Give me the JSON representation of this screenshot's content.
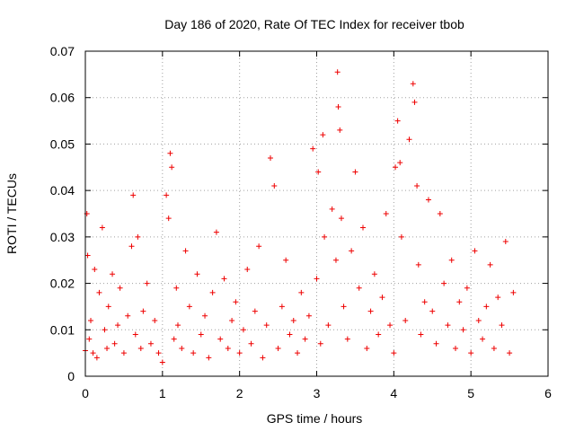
{
  "chart_data": {
    "type": "scatter",
    "title": "Day 186 of 2020, Rate Of TEC Index for receiver tbob",
    "xlabel": "GPS time / hours",
    "ylabel": "ROTI / TECUs",
    "xlim": [
      0,
      6
    ],
    "ylim": [
      0,
      0.07
    ],
    "x_ticks": [
      "0",
      "1",
      "2",
      "3",
      "4",
      "5",
      "6"
    ],
    "y_ticks": [
      "0",
      "0.01",
      "0.02",
      "0.03",
      "0.04",
      "0.05",
      "0.06",
      "0.07"
    ],
    "grid": true,
    "marker": "plus",
    "color": "#ee0000",
    "series": [
      {
        "name": "ROTI",
        "x": [
          0.0,
          0.02,
          0.03,
          0.05,
          0.07,
          0.1,
          0.12,
          0.15,
          0.18,
          0.22,
          0.25,
          0.28,
          0.3,
          0.35,
          0.38,
          0.42,
          0.45,
          0.5,
          0.55,
          0.6,
          0.62,
          0.65,
          0.68,
          0.72,
          0.75,
          0.8,
          0.85,
          0.9,
          0.95,
          1.0,
          1.05,
          1.08,
          1.1,
          1.12,
          1.15,
          1.18,
          1.2,
          1.25,
          1.3,
          1.35,
          1.4,
          1.45,
          1.5,
          1.55,
          1.6,
          1.65,
          1.7,
          1.75,
          1.8,
          1.85,
          1.9,
          1.95,
          2.0,
          2.05,
          2.1,
          2.15,
          2.2,
          2.25,
          2.3,
          2.35,
          2.4,
          2.45,
          2.5,
          2.55,
          2.6,
          2.65,
          2.7,
          2.75,
          2.8,
          2.85,
          2.9,
          2.95,
          3.0,
          3.02,
          3.05,
          3.08,
          3.1,
          3.15,
          3.2,
          3.25,
          3.27,
          3.28,
          3.3,
          3.32,
          3.35,
          3.4,
          3.45,
          3.5,
          3.55,
          3.6,
          3.65,
          3.7,
          3.75,
          3.8,
          3.85,
          3.9,
          3.95,
          4.0,
          4.02,
          4.05,
          4.08,
          4.1,
          4.15,
          4.2,
          4.25,
          4.27,
          4.3,
          4.32,
          4.35,
          4.4,
          4.45,
          4.5,
          4.55,
          4.6,
          4.65,
          4.7,
          4.75,
          4.8,
          4.85,
          4.9,
          4.95,
          5.0,
          5.05,
          5.1,
          5.15,
          5.2,
          5.25,
          5.3,
          5.35,
          5.4,
          5.45,
          5.5,
          5.55
        ],
        "y": [
          0.0055,
          0.035,
          0.026,
          0.008,
          0.012,
          0.005,
          0.023,
          0.004,
          0.018,
          0.032,
          0.01,
          0.006,
          0.015,
          0.022,
          0.007,
          0.011,
          0.019,
          0.005,
          0.013,
          0.028,
          0.039,
          0.009,
          0.03,
          0.006,
          0.014,
          0.02,
          0.007,
          0.012,
          0.005,
          0.003,
          0.039,
          0.034,
          0.048,
          0.045,
          0.008,
          0.019,
          0.011,
          0.006,
          0.027,
          0.015,
          0.005,
          0.022,
          0.009,
          0.013,
          0.004,
          0.018,
          0.031,
          0.008,
          0.021,
          0.006,
          0.012,
          0.016,
          0.005,
          0.01,
          0.023,
          0.007,
          0.014,
          0.028,
          0.004,
          0.011,
          0.047,
          0.041,
          0.006,
          0.015,
          0.025,
          0.009,
          0.012,
          0.005,
          0.018,
          0.008,
          0.013,
          0.049,
          0.021,
          0.044,
          0.007,
          0.052,
          0.03,
          0.011,
          0.036,
          0.025,
          0.0655,
          0.058,
          0.053,
          0.034,
          0.015,
          0.008,
          0.027,
          0.044,
          0.019,
          0.032,
          0.006,
          0.014,
          0.022,
          0.009,
          0.017,
          0.035,
          0.011,
          0.005,
          0.045,
          0.055,
          0.046,
          0.03,
          0.012,
          0.051,
          0.063,
          0.059,
          0.041,
          0.024,
          0.009,
          0.016,
          0.038,
          0.014,
          0.007,
          0.035,
          0.02,
          0.011,
          0.025,
          0.006,
          0.016,
          0.01,
          0.019,
          0.005,
          0.027,
          0.012,
          0.008,
          0.015,
          0.024,
          0.006,
          0.017,
          0.011,
          0.029,
          0.005,
          0.018
        ]
      }
    ]
  }
}
